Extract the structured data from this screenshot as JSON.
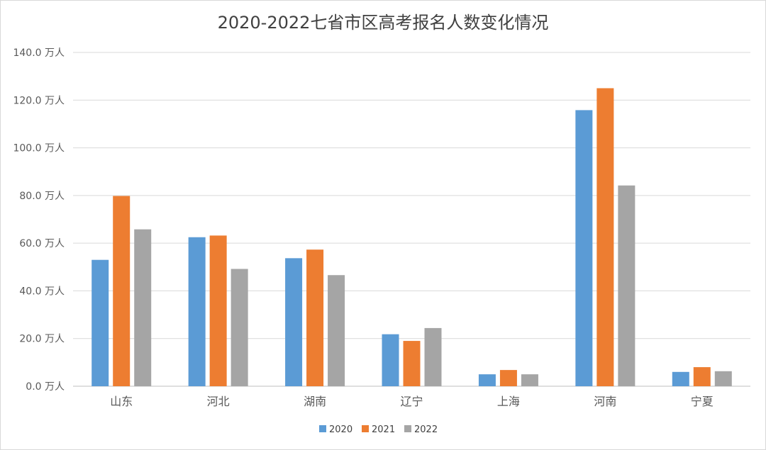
{
  "chart_data": {
    "type": "bar",
    "title": "2020-2022七省市区高考报名人数变化情况",
    "categories": [
      "山东",
      "河北",
      "湖南",
      "辽宁",
      "上海",
      "河南",
      "宁夏"
    ],
    "series": [
      {
        "name": "2020",
        "color": "#5b9bd5",
        "values": [
          53.0,
          62.5,
          53.7,
          21.8,
          5.0,
          115.8,
          6.0
        ]
      },
      {
        "name": "2021",
        "color": "#ed7d31",
        "values": [
          79.8,
          63.2,
          57.3,
          19.0,
          6.8,
          125.0,
          8.0
        ]
      },
      {
        "name": "2022",
        "color": "#a5a5a5",
        "values": [
          65.8,
          49.2,
          46.6,
          24.4,
          5.0,
          84.2,
          6.3
        ]
      }
    ],
    "yticks": [
      "0.0 万人",
      "20.0 万人",
      "40.0 万人",
      "60.0 万人",
      "80.0 万人",
      "100.0 万人",
      "120.0 万人",
      "140.0 万人"
    ],
    "ylim": [
      0,
      140
    ],
    "grid": true,
    "legend": "bottom"
  }
}
